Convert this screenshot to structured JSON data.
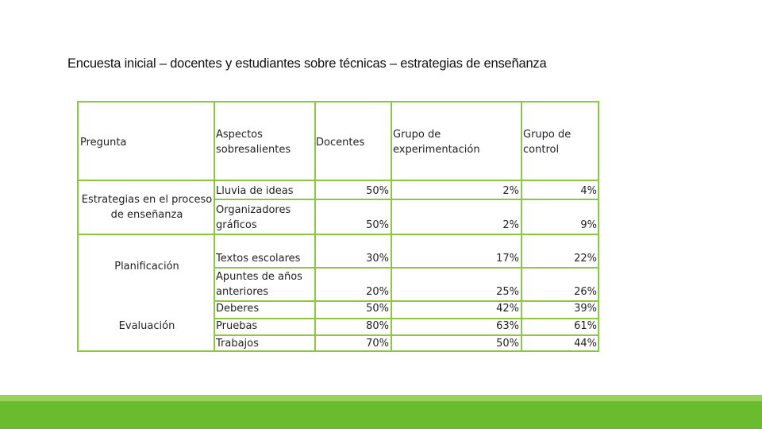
{
  "title": "Encuesta inicial – docentes y estudiantes sobre técnicas – estrategias de enseñanza",
  "headers": {
    "pregunta": "Pregunta",
    "aspectos_1": "Aspectos",
    "aspectos_2": "sobresalientes",
    "docentes": "Docentes",
    "grupo_exp_1": "Grupo de",
    "grupo_exp_2": "experimentación",
    "grupo_ctrl_1": "Grupo de",
    "grupo_ctrl_2": "control"
  },
  "categories": {
    "estrategias_1": "Estrategias en el proceso",
    "estrategias_2": "de enseñanza",
    "planificacion": "Planificación",
    "evaluacion": "Evaluación"
  },
  "rows": [
    {
      "aspecto": [
        "Lluvia de ideas"
      ],
      "docentes": "50%",
      "experimentacion": "2%",
      "control": "4%"
    },
    {
      "aspecto": [
        "Organizadores",
        "gráficos"
      ],
      "docentes": "50%",
      "experimentacion": "2%",
      "control": "9%"
    },
    {
      "aspecto": [
        "Textos escolares"
      ],
      "docentes": "30%",
      "experimentacion": "17%",
      "control": "22%"
    },
    {
      "aspecto": [
        "Apuntes de años",
        "anteriores"
      ],
      "docentes": "20%",
      "experimentacion": "25%",
      "control": "26%"
    },
    {
      "aspecto": [
        "Deberes"
      ],
      "docentes": "50%",
      "experimentacion": "42%",
      "control": "39%"
    },
    {
      "aspecto": [
        "Pruebas"
      ],
      "docentes": "80%",
      "experimentacion": "63%",
      "control": "61%"
    },
    {
      "aspecto": [
        "Trabajos"
      ],
      "docentes": "70%",
      "experimentacion": "50%",
      "control": "44%"
    }
  ],
  "colors": {
    "border": "#8dc63f",
    "footer": "#6bbb2e"
  }
}
